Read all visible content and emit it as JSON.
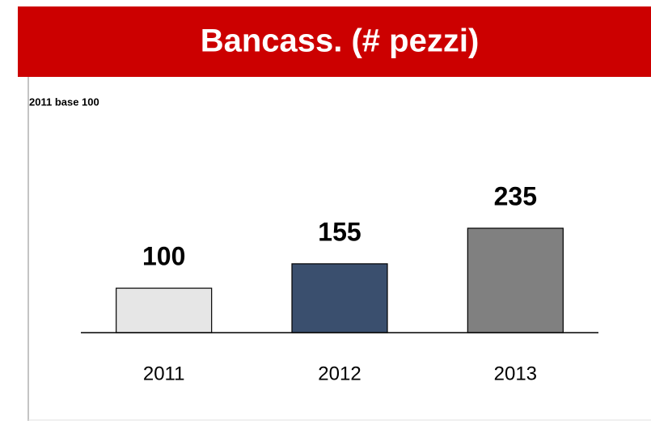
{
  "chart_data": {
    "type": "bar",
    "title": "Bancass. (# pezzi)",
    "subtitle": "2011 base 100",
    "categories": [
      "2011",
      "2012",
      "2013"
    ],
    "values": [
      100,
      155,
      235
    ],
    "colors": [
      "#e6e6e6",
      "#3a4f6e",
      "#808080"
    ]
  }
}
